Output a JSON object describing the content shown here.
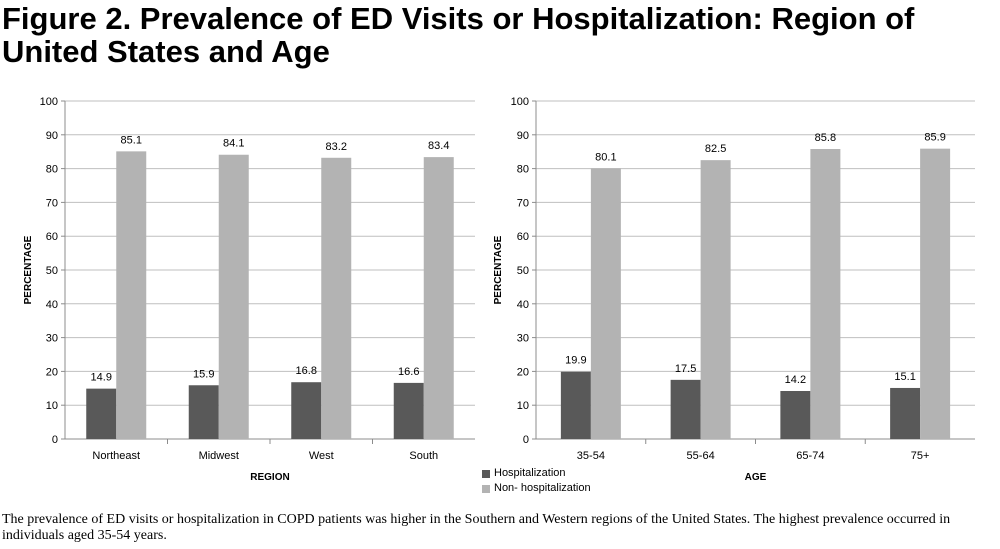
{
  "figure": {
    "title": "Figure 2. Prevalence of ED Visits or Hospitalization: Region of United States and Age",
    "caption": "The prevalence of ED visits or hospitalization in COPD patients was higher in the Southern and Western regions of the United States. The highest prevalence occurred in individuals aged 35-54 years."
  },
  "colors": {
    "hospitalization": "#595959",
    "non_hospitalization": "#b3b3b3",
    "grid": "#bfbfbf",
    "axis": "#8c8c8c"
  },
  "legend": {
    "placement": "bottom-between-charts",
    "items": [
      {
        "label": "Hospitalization",
        "color": "#595959"
      },
      {
        "label": "Non- hospitalization",
        "color": "#b3b3b3"
      }
    ]
  },
  "chart_data": [
    {
      "type": "bar",
      "title": "",
      "xlabel": "REGION",
      "ylabel": "PERCENTAGE",
      "ylim": [
        0,
        100
      ],
      "yticks": [
        "0",
        "10",
        "20",
        "30",
        "40",
        "50",
        "60",
        "70",
        "80",
        "90",
        "100"
      ],
      "grid": true,
      "categories": [
        "Northeast",
        "Midwest",
        "West",
        "South"
      ],
      "series": [
        {
          "name": "Hospitalization",
          "values": [
            14.9,
            15.9,
            16.8,
            16.6
          ],
          "labels": [
            "14.9",
            "15.9",
            "16.8",
            "16.6"
          ]
        },
        {
          "name": "Non- hospitalization",
          "values": [
            85.1,
            84.1,
            83.2,
            83.4
          ],
          "labels": [
            "85.1",
            "84.1",
            "83.2",
            "83.4"
          ]
        }
      ]
    },
    {
      "type": "bar",
      "title": "",
      "xlabel": "AGE",
      "ylabel": "PERCENTAGE",
      "ylim": [
        0,
        100
      ],
      "yticks": [
        "0",
        "10",
        "20",
        "30",
        "40",
        "50",
        "60",
        "70",
        "80",
        "90",
        "100"
      ],
      "grid": true,
      "categories": [
        "35-54",
        "55-64",
        "65-74",
        "75+"
      ],
      "series": [
        {
          "name": "Hospitalization",
          "values": [
            19.9,
            17.5,
            14.2,
            15.1
          ],
          "labels": [
            "19.9",
            "17.5",
            "14.2",
            "15.1"
          ]
        },
        {
          "name": "Non- hospitalization",
          "values": [
            80.1,
            82.5,
            85.8,
            85.9
          ],
          "labels": [
            "80.1",
            "82.5",
            "85.8",
            "85.9"
          ]
        }
      ]
    }
  ]
}
